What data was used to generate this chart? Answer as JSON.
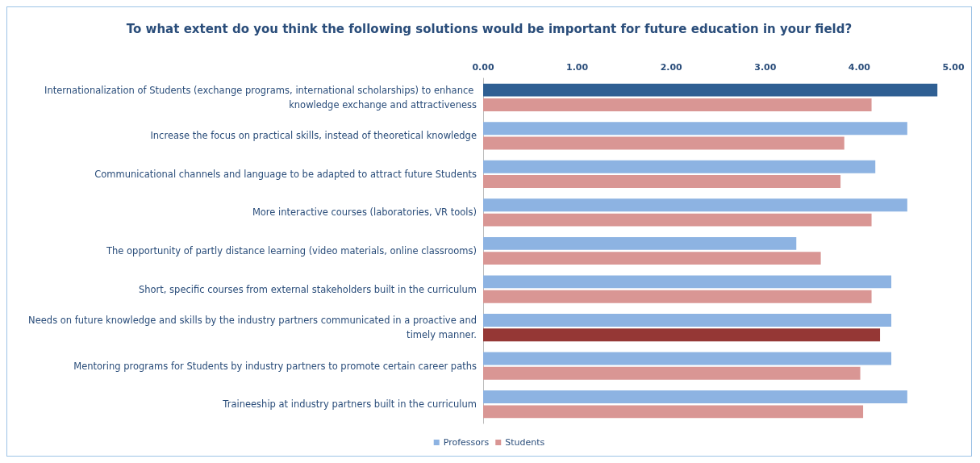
{
  "chart_data": {
    "type": "bar",
    "orientation": "horizontal",
    "title": "To what extent do you think the following solutions would be important for future education in your field?",
    "categories": [
      "Internationalization of Students (exchange programs, international scholarships) to enhance knowledge exchange and attractiveness",
      "Increase the focus on practical skills, instead of theoretical knowledge",
      "Communicational channels and language to be adapted to attract future Students",
      "More interactive courses (laboratories, VR tools)",
      "The opportunity of partly distance learning (video materials, online classrooms)",
      "Short, specific courses from external stakeholders built in the curriculum",
      "Needs on future knowledge and skills by the industry partners communicated in a proactive and timely manner.",
      "Mentoring programs for Students by industry partners to promote certain career paths",
      "Traineeship at industry partners built in the curriculum"
    ],
    "series": [
      {
        "name": "Professors",
        "color": "#8db3e2",
        "colors": [
          "#2f5f93",
          "#8db3e2",
          "#8db3e2",
          "#8db3e2",
          "#8db3e2",
          "#8db3e2",
          "#8db3e2",
          "#8db3e2",
          "#8db3e2"
        ],
        "values": [
          4.83,
          4.51,
          4.17,
          4.51,
          3.33,
          4.34,
          4.34,
          4.34,
          4.51
        ]
      },
      {
        "name": "Students",
        "color": "#d99694",
        "colors": [
          "#d99694",
          "#d99694",
          "#d99694",
          "#d99694",
          "#d99694",
          "#d99694",
          "#953735",
          "#d99694",
          "#d99694"
        ],
        "values": [
          4.13,
          3.84,
          3.8,
          4.13,
          3.59,
          4.13,
          4.22,
          4.01,
          4.04
        ]
      }
    ],
    "xlim": [
      0,
      5
    ],
    "xticks": [
      {
        "value": 0,
        "label": "0.00"
      },
      {
        "value": 1,
        "label": "1.00"
      },
      {
        "value": 2,
        "label": "2.00"
      },
      {
        "value": 3,
        "label": "3.00"
      },
      {
        "value": 4,
        "label": "4.00"
      },
      {
        "value": 5,
        "label": "5.00"
      }
    ],
    "legend": "bottom",
    "grid": false
  }
}
